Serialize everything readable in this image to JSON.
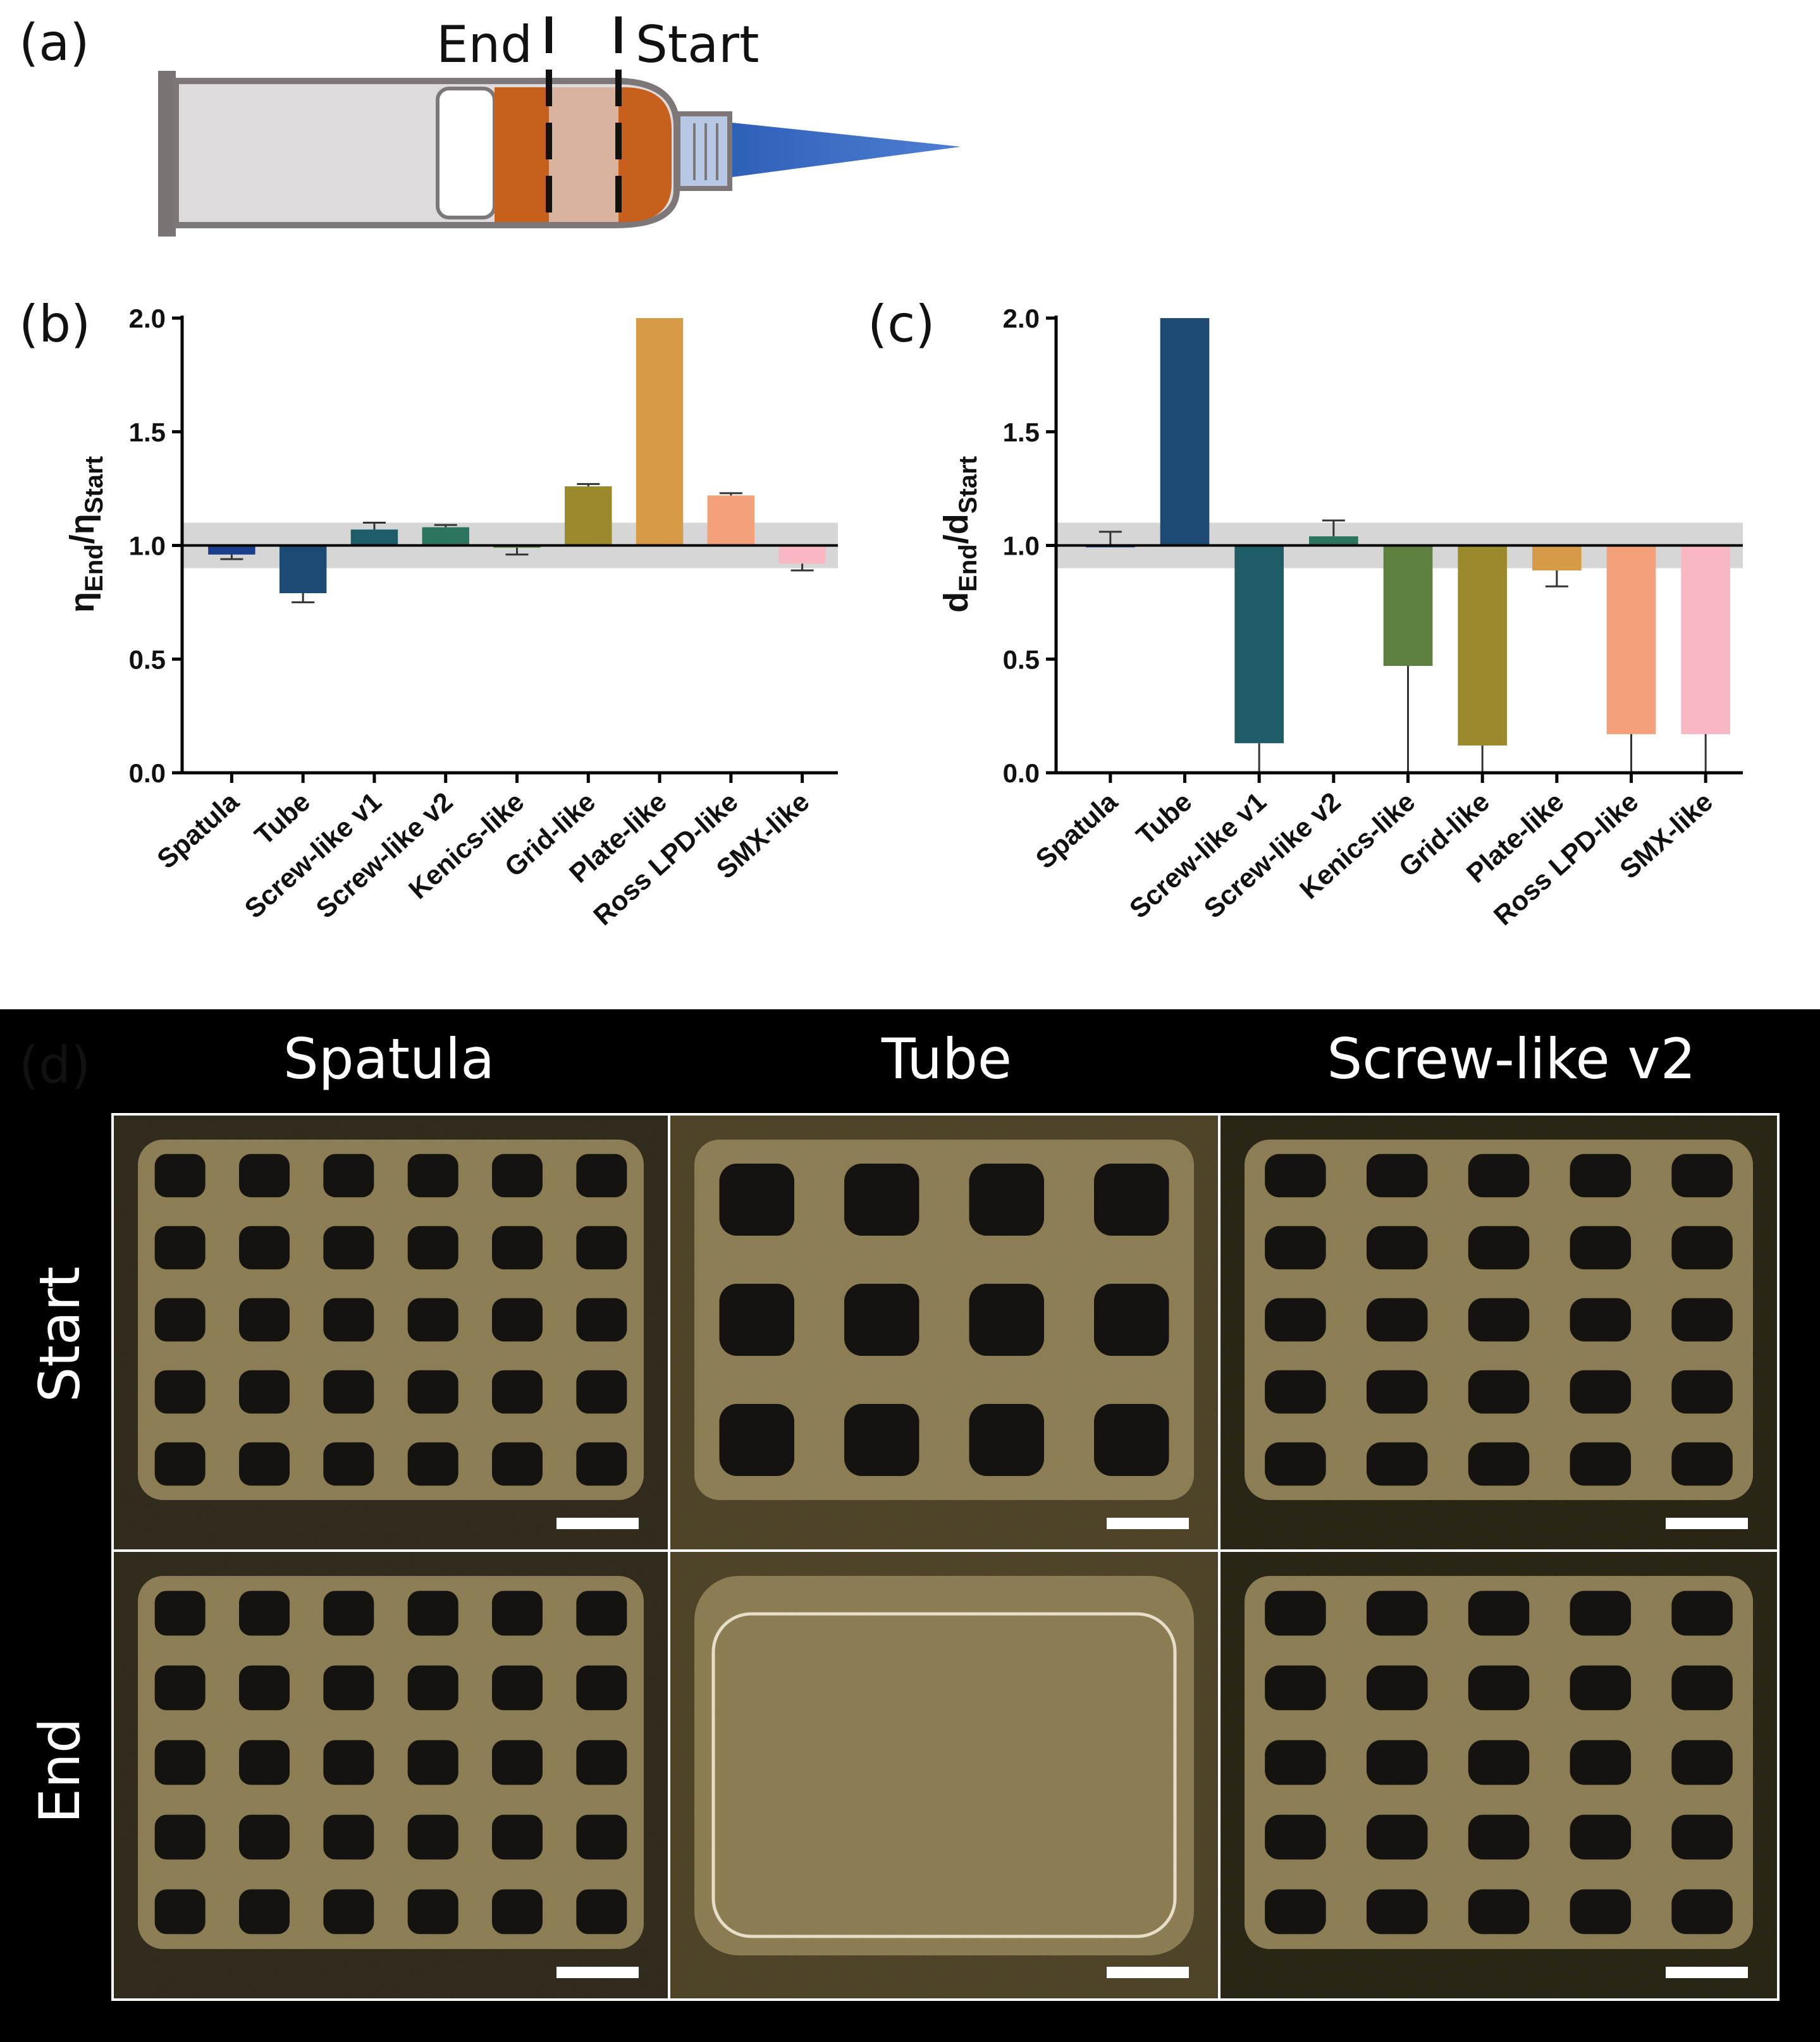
{
  "panel_labels": {
    "a": "(a)",
    "b": "(b)",
    "c": "(c)",
    "d": "(d)"
  },
  "syringe": {
    "end_label": "End",
    "start_label": "Start"
  },
  "colors": {
    "spatula": "#1b3f8b",
    "tube": "#1c4a74",
    "screw_v1": "#1e5c68",
    "screw_v2": "#2a7460",
    "kenics": "#5d8040",
    "grid": "#9a8a2c",
    "plate": "#d79a46",
    "ross": "#f4a07a",
    "smx": "#f9b7c2",
    "band": "#d6d6d6"
  },
  "chart_data": [
    {
      "type": "bar",
      "panel": "(b)",
      "categories": [
        "Spatula",
        "Tube",
        "Screw-like v1",
        "Screw-like v2",
        "Kenics-like",
        "Grid-like",
        "Plate-like",
        "Ross LPD-like",
        "SMX-like"
      ],
      "values": [
        0.96,
        0.79,
        1.07,
        1.08,
        0.99,
        1.26,
        2.0,
        1.22,
        0.92
      ],
      "err_low": [
        0.94,
        0.75,
        null,
        null,
        0.96,
        null,
        null,
        null,
        0.89
      ],
      "err_high": [
        null,
        null,
        1.1,
        1.09,
        null,
        1.27,
        null,
        1.23,
        null
      ],
      "baseline": 1.0,
      "band": [
        0.9,
        1.1
      ],
      "ylabel_main": "η",
      "ylabel_sub_end": "End",
      "ylabel_sep": "/",
      "ylabel_sub_start": "Start",
      "ylim": [
        0,
        2.0
      ],
      "yticks": [
        "0.0",
        "0.5",
        "1.0",
        "1.5",
        "2.0"
      ]
    },
    {
      "type": "bar",
      "panel": "(c)",
      "categories": [
        "Spatula",
        "Tube",
        "Screw-like v1",
        "Screw-like v2",
        "Kenics-like",
        "Grid-like",
        "Plate-like",
        "Ross LPD-like",
        "SMX-like"
      ],
      "values": [
        1.0,
        2.0,
        0.13,
        1.04,
        0.47,
        0.12,
        0.89,
        0.17,
        0.17
      ],
      "err_low": [
        null,
        null,
        0.0,
        null,
        0.0,
        0.0,
        0.82,
        0.0,
        0.0
      ],
      "err_high": [
        1.06,
        null,
        null,
        1.11,
        null,
        null,
        null,
        null,
        null
      ],
      "baseline": 1.0,
      "band": [
        0.9,
        1.1
      ],
      "ylabel_main": "d",
      "ylabel_sub_end": "End",
      "ylabel_sep": "/d",
      "ylabel_sub_start": "Start",
      "ylim": [
        0,
        2.0
      ],
      "yticks": [
        "0.0",
        "0.5",
        "1.0",
        "1.5",
        "2.0"
      ]
    }
  ],
  "micrographs": {
    "columns": [
      "Spatula",
      "Tube",
      "Screw-like v2"
    ],
    "rows": [
      "Start",
      "End"
    ]
  }
}
